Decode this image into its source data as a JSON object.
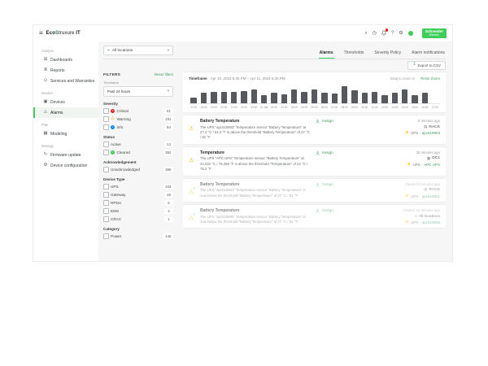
{
  "ui": {
    "chevron": "▾",
    "check": "✓",
    "menu_icon": "≡"
  },
  "colors": {
    "accent_green": "#3dcd58",
    "link_green": "#469b63",
    "bar_gray": "#55585c",
    "critical_red": "#e2231a",
    "warning_amber": "#f2af00",
    "info_blue": "#0087ff"
  },
  "brand": {
    "name_pre": "Eco",
    "name_mid": "S",
    "name_post": "truxure",
    "name_suffix": " IT"
  },
  "header": {
    "icons": [
      {
        "name": "search",
        "glyph": "⌕"
      },
      {
        "name": "history",
        "glyph": "◷"
      },
      {
        "name": "notifications"
      },
      {
        "name": "help",
        "glyph": "?"
      },
      {
        "name": "settings",
        "glyph": "⚙"
      },
      {
        "name": "avatar"
      }
    ],
    "schneider_line1": "Schneider",
    "schneider_line2": "Electric"
  },
  "sidebar": {
    "sections": [
      {
        "label": "Analyze",
        "items": [
          {
            "label": "Dashboards",
            "icon": "⊞"
          },
          {
            "label": "Reports",
            "icon": "≣"
          },
          {
            "label": "Services and Warranties",
            "icon": "⊙"
          }
        ]
      },
      {
        "label": "Monitor",
        "items": [
          {
            "label": "Devices",
            "icon": "▣"
          },
          {
            "label": "Alarms",
            "icon": "⚠",
            "active": true
          }
        ]
      },
      {
        "label": "Plan",
        "items": [
          {
            "label": "Modeling",
            "icon": "▦"
          }
        ]
      },
      {
        "label": "Manage",
        "items": [
          {
            "label": "Firmware update",
            "icon": "↻"
          },
          {
            "label": "Device configuration",
            "icon": "⚙"
          }
        ]
      }
    ]
  },
  "location_filter": {
    "icon": "⌖",
    "value": "All locations"
  },
  "tabs": [
    {
      "label": "Alarms",
      "active": true
    },
    {
      "label": "Thresholds"
    },
    {
      "label": "Severity Policy"
    },
    {
      "label": "Alarm notifications"
    }
  ],
  "toolbar": {
    "export_label": "Export to CSV",
    "export_icon": "↧"
  },
  "filters": {
    "title": "FILTERS",
    "reset": "Reset filters",
    "timeframe_label": "Timeframe",
    "timeframe_value": "Past 24 hours",
    "groups": [
      {
        "label": "Severity",
        "options": [
          {
            "label": "Critical",
            "count": "81",
            "icon_glyph": "✕"
          },
          {
            "label": "Warning",
            "count": "191",
            "icon_glyph": "⚠"
          },
          {
            "label": "Info",
            "count": "94",
            "icon_glyph": "i"
          }
        ]
      },
      {
        "label": "Status",
        "options": [
          {
            "label": "Active",
            "count": "14"
          },
          {
            "label": "Cleared",
            "count": "352",
            "icon_glyph": "✓"
          }
        ]
      },
      {
        "label": "Acknowledgement",
        "options": [
          {
            "label": "Unacknowledged",
            "count": "366"
          }
        ]
      },
      {
        "label": "Device Type",
        "options": [
          {
            "label": "UPS",
            "count": "342"
          },
          {
            "label": "Gateway",
            "count": "18"
          },
          {
            "label": "RPDU",
            "count": "5"
          },
          {
            "label": "EMS",
            "count": "4"
          },
          {
            "label": "CRAC",
            "count": "1"
          }
        ]
      },
      {
        "label": "Category",
        "options": [
          {
            "label": "Power",
            "count": "146"
          }
        ]
      }
    ]
  },
  "chart_data": {
    "type": "bar",
    "title": "Alarm activity over past 24 hours",
    "timeframe_label": "Timeframe",
    "timeframe_value": "Apr 10, 2024 5:25 PM – Apr 11, 2024 5:25 PM",
    "drag_hint": "Drag to zoom in",
    "reset_zoom": "Reset Zoom",
    "categories": [
      "17:00",
      "18:00",
      "19:00",
      "20:00",
      "21:00",
      "22:00",
      "23:00",
      "11. Apr",
      "01:00",
      "02:00",
      "03:00",
      "04:00",
      "05:00",
      "06:00",
      "07:00",
      "08:00",
      "09:00",
      "10:00",
      "11:00",
      "12:00",
      "13:00",
      "14:00",
      "15:00",
      "16:00",
      "17:00"
    ],
    "values_pct_of_max": [
      30,
      55,
      60,
      60,
      63,
      65,
      72,
      45,
      58,
      50,
      75,
      63,
      75,
      55,
      52,
      92,
      68,
      58,
      60,
      45,
      55,
      75,
      45,
      55,
      0
    ],
    "bar_color": "#55585c",
    "ylim": [
      0,
      100
    ],
    "grid": false,
    "legend": false
  },
  "alarm_list": {
    "assign_label": "Assign",
    "device_icon": "⚡",
    "device_sep": "·",
    "items": [
      {
        "severity": "warning",
        "icon_glyph": "⚠",
        "cleared": false,
        "title": "Battery Temperature",
        "message": "The UPS \"apc619903\" Temperature sensor \"Battery Temperature\" at 27.4 °C / 81.3 °F is above the threshold \"Battery Temperature\" of 27 °C / 81 °F.",
        "time": "8 minutes ago",
        "location": "RACK",
        "location_icon": "▤",
        "device_type": "UPS",
        "device_name": "apc619903"
      },
      {
        "severity": "warning",
        "icon_glyph": "⚠",
        "cleared": false,
        "title": "Temperature",
        "message": "The UPS \"APC UPS\" Temperature sensor \"Battery Temperature\" at 24.031 °C / 75.256 °F is above the threshold \"Temperature\" of 24 °C / 75.2 °F.",
        "time": "26 minutes ago",
        "location": "DC1",
        "location_icon": "▦",
        "device_type": "UPS",
        "device_name": "APC UPS"
      },
      {
        "severity": "warning",
        "icon_glyph": "⚠",
        "cleared": true,
        "title": "Battery Temperature",
        "message": "The UPS \"apc619901\" Temperature sensor \"Battery Temperature\" is now below the threshold \"Battery Temperature\" of 27 °C / 81 °F.",
        "time": "Cleared 8 minutes ago",
        "location": "RACK",
        "location_icon": "▤",
        "device_type": "UPS",
        "device_name": "apc619901"
      },
      {
        "severity": "warning",
        "icon_glyph": "⚠",
        "cleared": true,
        "title": "Battery Temperature",
        "message": "The UPS \"apc619905\" Temperature sensor \"Battery Temperature\" is now below the threshold \"Battery Temperature\" of 27 °C / 81 °F.",
        "time": "Cleared 10 minutes ago",
        "location": "All locations",
        "location_icon": "⌖",
        "device_type": "UPS",
        "device_name": "apc619905"
      }
    ]
  }
}
